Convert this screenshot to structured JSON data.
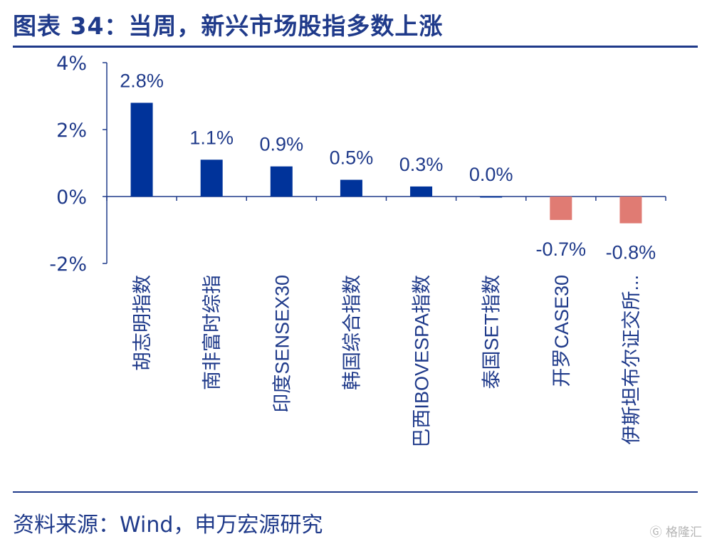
{
  "header": {
    "title": "图表 34：当周，新兴市场股指多数上涨"
  },
  "footer": {
    "source": "资料来源：Wind，申万宏源研究"
  },
  "watermark": {
    "text": "Ⓖ 格隆汇"
  },
  "colors": {
    "positive": "#00339a",
    "negative": "#e07b73",
    "text": "#1f3a8a",
    "axis": "#1f3a8a"
  },
  "chart_data": {
    "type": "bar",
    "title": "当周，新兴市场股指多数上涨",
    "xlabel": "",
    "ylabel": "",
    "ylim": [
      -2,
      4
    ],
    "yticks": [
      -2,
      0,
      2,
      4
    ],
    "ytick_labels": [
      "-2%",
      "0%",
      "2%",
      "4%"
    ],
    "categories": [
      "胡志明指数",
      "南非富时综指",
      "印度SENSEX30",
      "韩国综合指数",
      "巴西IBOVESPA指数",
      "泰国SET指数",
      "开罗CASE30",
      "伊斯坦布尔证交所..."
    ],
    "values": [
      2.8,
      1.1,
      0.9,
      0.5,
      0.3,
      0.0,
      -0.7,
      -0.8
    ],
    "data_labels": [
      "2.8%",
      "1.1%",
      "0.9%",
      "0.5%",
      "0.3%",
      "0.0%",
      "-0.7%",
      "-0.8%"
    ],
    "grid": false,
    "legend": "none"
  }
}
